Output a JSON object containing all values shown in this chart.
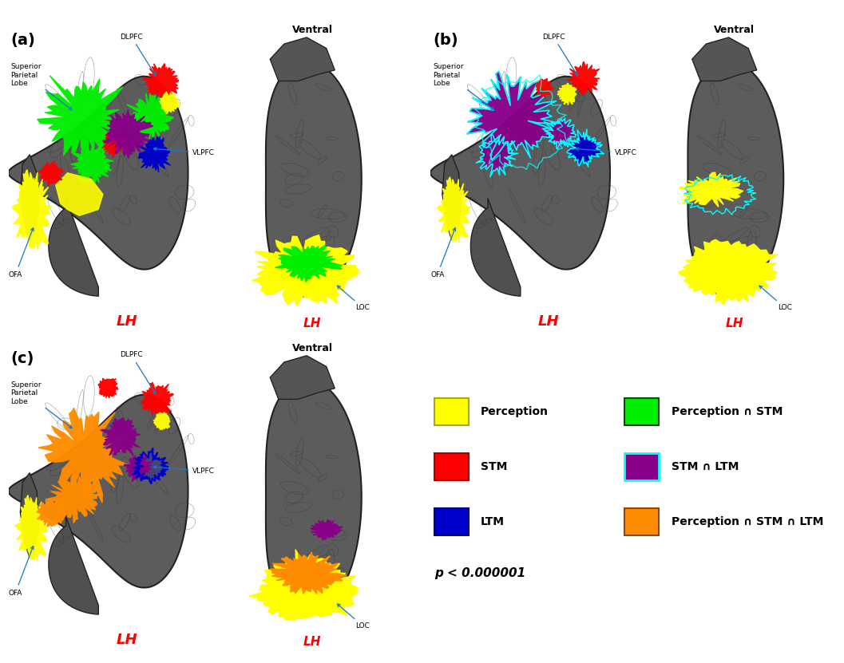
{
  "fig_width": 10.57,
  "fig_height": 8.31,
  "background_color": "#FFFFFF",
  "panels": [
    "(a)",
    "(b)",
    "(c)"
  ],
  "lh_color": "#FF0000",
  "brain_fill": "#5A5A5A",
  "brain_edge": "#2A2A2A",
  "legend_items_left": [
    {
      "color": "#FFFF00",
      "edge": "#AAAA00",
      "label": "Perception"
    },
    {
      "color": "#FF0000",
      "edge": "#AA0000",
      "label": "STM"
    },
    {
      "color": "#0000CC",
      "edge": "#000088",
      "label": "LTM"
    }
  ],
  "legend_items_right": [
    {
      "color": "#00FF00",
      "edge": "#005500",
      "label": "Perception ∩ STM"
    },
    {
      "color": "#800080",
      "edge": "#00FFFF",
      "label": "STM ∩ LTM"
    },
    {
      "color": "#FF8C00",
      "edge": "#994400",
      "label": "Perception ∩ STM ∩ LTM"
    }
  ],
  "p_value_text": "p < 0.000001"
}
